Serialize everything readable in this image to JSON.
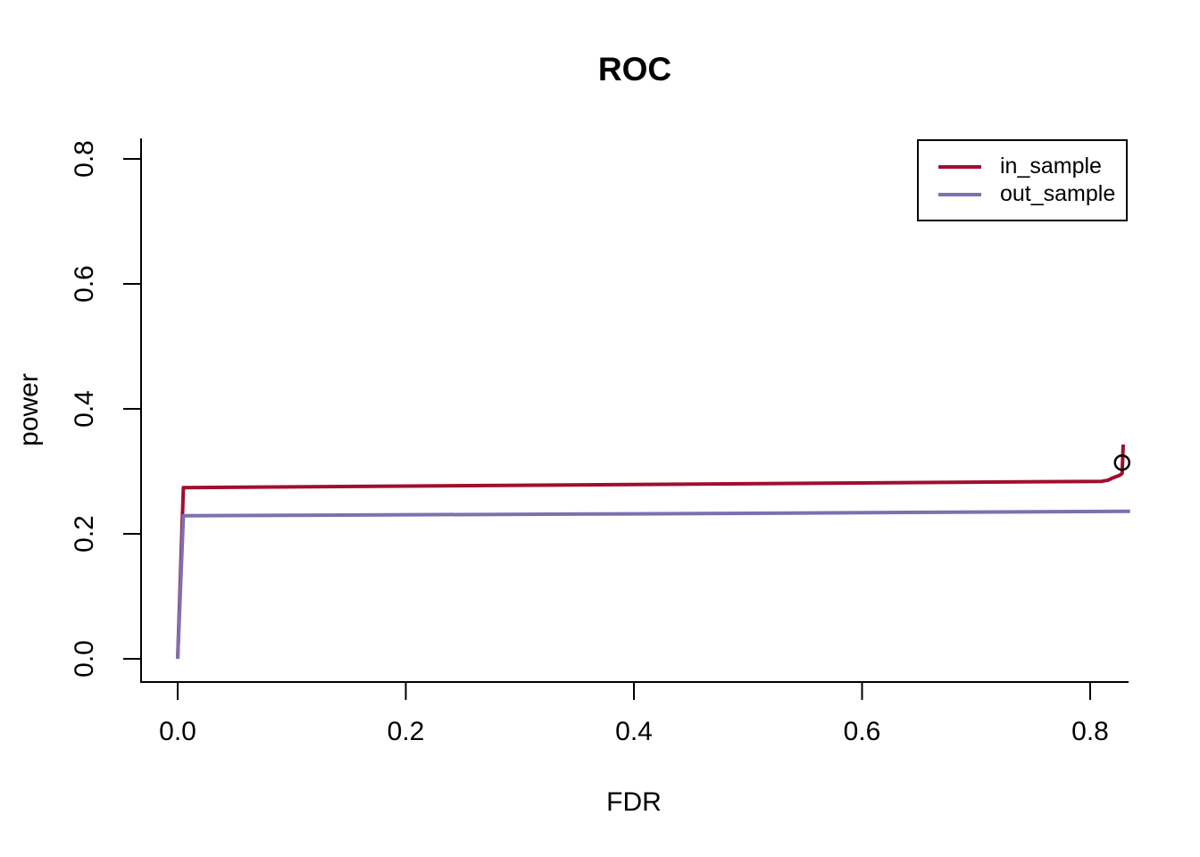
{
  "chart_data": {
    "type": "line",
    "title": "ROC",
    "xlabel": "FDR",
    "ylabel": "power",
    "xlim": [
      0,
      0.835
    ],
    "ylim": [
      0,
      0.8
    ],
    "x_ticks": [
      0.0,
      0.2,
      0.4,
      0.6,
      0.8
    ],
    "x_tick_labels": [
      "0.0",
      "0.2",
      "0.4",
      "0.6",
      "0.8"
    ],
    "y_ticks": [
      0.0,
      0.2,
      0.4,
      0.6,
      0.8
    ],
    "y_tick_labels": [
      "0.0",
      "0.2",
      "0.4",
      "0.6",
      "0.8"
    ],
    "grid": false,
    "legend_position": "top-right",
    "axis_color": "#000000",
    "series": [
      {
        "name": "in_sample",
        "color": "#a00f2d",
        "points": [
          [
            0.0,
            0.0
          ],
          [
            0.005,
            0.274
          ],
          [
            0.4,
            0.279
          ],
          [
            0.81,
            0.284
          ],
          [
            0.816,
            0.286
          ],
          [
            0.819,
            0.289
          ],
          [
            0.822,
            0.291
          ],
          [
            0.825,
            0.293
          ],
          [
            0.827,
            0.295
          ],
          [
            0.828,
            0.297
          ],
          [
            0.829,
            0.343
          ]
        ]
      },
      {
        "name": "out_sample",
        "color": "#7d70b0",
        "points": [
          [
            0.0,
            0.0
          ],
          [
            0.005,
            0.229
          ],
          [
            0.4,
            0.232
          ],
          [
            0.835,
            0.236
          ]
        ]
      }
    ],
    "end_marker": {
      "series": "in_sample",
      "x": 0.828,
      "y": 0.314,
      "shape": "open-circle",
      "color": "#000000"
    }
  }
}
